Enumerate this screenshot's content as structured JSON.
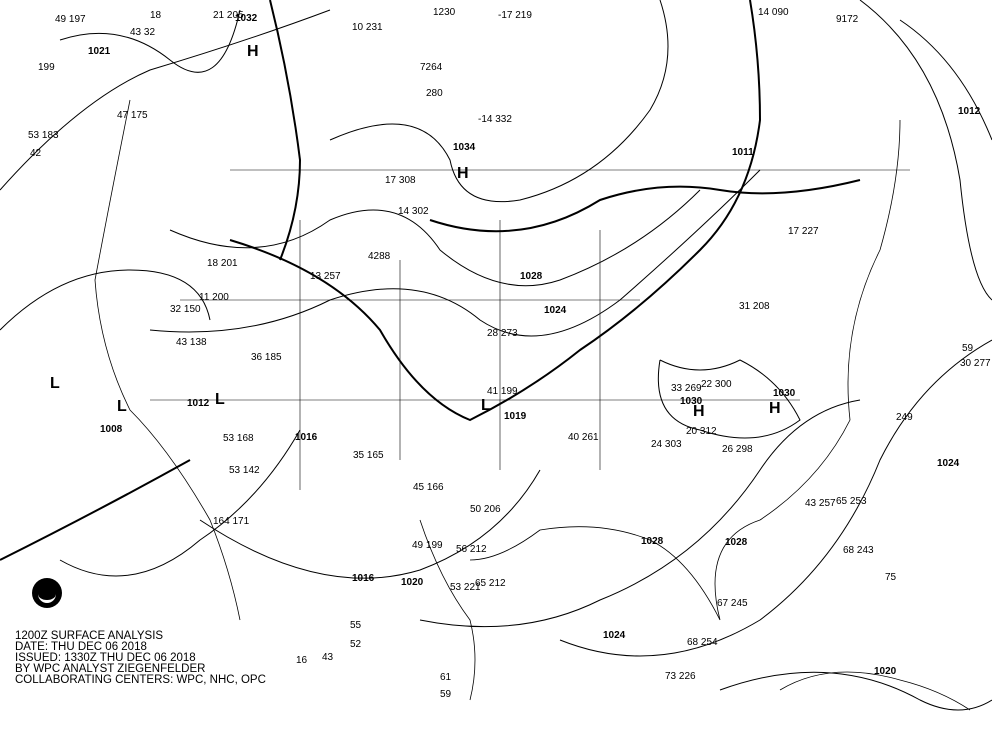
{
  "caption": {
    "line1": "1200Z SURFACE ANALYSIS",
    "line2": "DATE: THU DEC 06 2018",
    "line3": "ISSUED: 1330Z THU DEC 06 2018",
    "line4": "BY WPC ANALYST ZIEGENFELDER",
    "line5": "COLLABORATING CENTERS: WPC, NHC, OPC"
  },
  "logo": "NOAA",
  "isobar_labels": [
    "1021",
    "1032",
    "1034",
    "1028",
    "1024",
    "1012",
    "1008",
    "1016",
    "1019",
    "1016",
    "1020",
    "1024",
    "1028",
    "1030",
    "1030",
    "1024",
    "1011",
    "1012",
    "1028",
    "1020"
  ],
  "pressure_centers": [
    "H",
    "H",
    "H",
    "H",
    "L",
    "L",
    "L",
    "L"
  ],
  "station_values": [
    "49 197",
    "18",
    "21 205",
    "43 32",
    "199",
    "10 231",
    "1230",
    "-17 219",
    "14 090",
    "9172",
    "47 175",
    "53 183",
    "42",
    "280",
    "7264",
    "-14 332",
    "17 308",
    "14 302",
    "4288",
    "13 257",
    "18 201",
    "32 150",
    "43 138",
    "36 185",
    "11 200",
    "53 168",
    "53 142",
    "164 171",
    "35 165",
    "45 166",
    "50 206",
    "56 212",
    "53 221",
    "65 212",
    "67 245",
    "68 254",
    "73 226",
    "55",
    "52",
    "61",
    "59",
    "16",
    "43",
    "49 199",
    "28 273",
    "41 199",
    "40 261",
    "24 303",
    "20 312",
    "26 298",
    "22 300",
    "33 269",
    "43 257",
    "65 253",
    "68 243",
    "75",
    "249",
    "59",
    "30 277",
    "31 208",
    "17 227"
  ],
  "colors": {
    "lines": "#000000",
    "background": "#ffffff"
  }
}
